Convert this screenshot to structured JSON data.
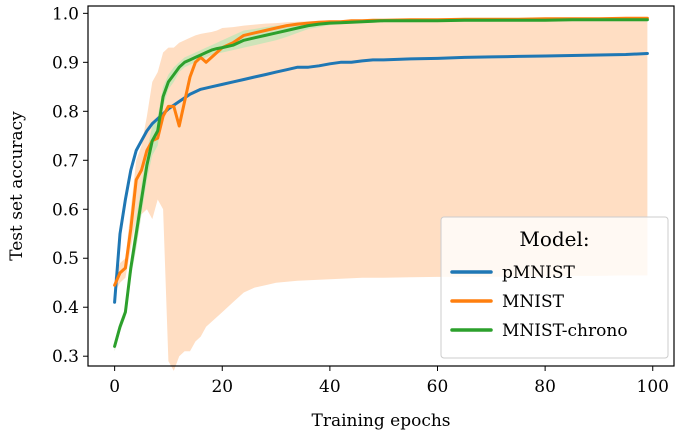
{
  "chart_data": {
    "type": "line",
    "title": "",
    "xlabel": "Training epochs",
    "ylabel": "Test set accuracy",
    "xlim": [
      -4.95,
      103.95
    ],
    "ylim": [
      0.28,
      1.015
    ],
    "xticks": [
      0,
      20,
      40,
      60,
      80,
      100
    ],
    "yticks": [
      0.3,
      0.4,
      0.5,
      0.6,
      0.7,
      0.8,
      0.9,
      1.0
    ],
    "grid": false,
    "legend": {
      "title": "Model:",
      "placement": "lower-right"
    },
    "series": [
      {
        "name": "pMNIST",
        "color": "#1f77b4",
        "x": [
          0,
          1,
          2,
          3,
          4,
          5,
          6,
          7,
          8,
          9,
          10,
          12,
          14,
          16,
          18,
          20,
          22,
          24,
          26,
          28,
          30,
          32,
          34,
          36,
          38,
          40,
          42,
          44,
          46,
          48,
          50,
          55,
          60,
          65,
          70,
          75,
          80,
          85,
          90,
          95,
          99
        ],
        "values": [
          0.41,
          0.55,
          0.62,
          0.68,
          0.72,
          0.74,
          0.76,
          0.775,
          0.785,
          0.795,
          0.805,
          0.82,
          0.835,
          0.845,
          0.85,
          0.855,
          0.86,
          0.865,
          0.87,
          0.875,
          0.88,
          0.885,
          0.89,
          0.89,
          0.893,
          0.897,
          0.9,
          0.9,
          0.903,
          0.905,
          0.905,
          0.907,
          0.908,
          0.91,
          0.911,
          0.912,
          0.913,
          0.914,
          0.915,
          0.916,
          0.918
        ]
      },
      {
        "name": "MNIST",
        "color": "#ff7f0e",
        "band_color": "#ffd8b8",
        "x": [
          0,
          1,
          2,
          3,
          4,
          5,
          6,
          7,
          8,
          9,
          10,
          11,
          12,
          13,
          14,
          15,
          16,
          17,
          18,
          19,
          20,
          22,
          24,
          26,
          28,
          30,
          32,
          34,
          36,
          38,
          40,
          42,
          44,
          46,
          48,
          50,
          55,
          60,
          65,
          70,
          75,
          80,
          85,
          90,
          95,
          99
        ],
        "values": [
          0.445,
          0.47,
          0.48,
          0.56,
          0.66,
          0.68,
          0.72,
          0.74,
          0.745,
          0.79,
          0.81,
          0.81,
          0.77,
          0.82,
          0.87,
          0.9,
          0.91,
          0.9,
          0.91,
          0.92,
          0.93,
          0.94,
          0.955,
          0.96,
          0.965,
          0.97,
          0.975,
          0.978,
          0.98,
          0.982,
          0.983,
          0.983,
          0.985,
          0.985,
          0.986,
          0.986,
          0.987,
          0.987,
          0.988,
          0.988,
          0.988,
          0.989,
          0.989,
          0.989,
          0.99,
          0.99
        ],
        "band_upper": [
          0.46,
          0.49,
          0.5,
          0.6,
          0.7,
          0.73,
          0.79,
          0.86,
          0.88,
          0.92,
          0.93,
          0.93,
          0.94,
          0.945,
          0.95,
          0.955,
          0.958,
          0.96,
          0.962,
          0.965,
          0.97,
          0.972,
          0.975,
          0.977,
          0.979,
          0.98,
          0.982,
          0.983,
          0.984,
          0.985,
          0.986,
          0.986,
          0.987,
          0.987,
          0.987,
          0.988,
          0.988,
          0.989,
          0.989,
          0.989,
          0.99,
          0.99,
          0.99,
          0.99,
          0.991,
          0.991
        ],
        "band_lower": [
          0.43,
          0.45,
          0.46,
          0.52,
          0.58,
          0.59,
          0.6,
          0.58,
          0.62,
          0.6,
          0.29,
          0.27,
          0.3,
          0.31,
          0.31,
          0.33,
          0.34,
          0.36,
          0.37,
          0.38,
          0.39,
          0.41,
          0.43,
          0.44,
          0.445,
          0.45,
          0.452,
          0.454,
          0.455,
          0.456,
          0.457,
          0.458,
          0.459,
          0.46,
          0.46,
          0.46,
          0.461,
          0.462,
          0.462,
          0.462,
          0.463,
          0.463,
          0.464,
          0.464,
          0.465,
          0.465
        ]
      },
      {
        "name": "MNIST-chrono",
        "color": "#2ca02c",
        "band_color": "#c6e5b7",
        "x": [
          0,
          1,
          2,
          3,
          4,
          5,
          6,
          7,
          8,
          9,
          10,
          11,
          12,
          13,
          14,
          15,
          16,
          17,
          18,
          19,
          20,
          22,
          24,
          26,
          28,
          30,
          32,
          34,
          36,
          38,
          40,
          42,
          44,
          46,
          48,
          50,
          55,
          60,
          65,
          70,
          75,
          80,
          85,
          90,
          95,
          99
        ],
        "values": [
          0.32,
          0.36,
          0.39,
          0.48,
          0.55,
          0.62,
          0.69,
          0.74,
          0.76,
          0.83,
          0.86,
          0.875,
          0.89,
          0.9,
          0.905,
          0.91,
          0.915,
          0.92,
          0.925,
          0.928,
          0.93,
          0.935,
          0.945,
          0.95,
          0.955,
          0.96,
          0.965,
          0.97,
          0.975,
          0.978,
          0.98,
          0.981,
          0.982,
          0.983,
          0.984,
          0.985,
          0.985,
          0.985,
          0.986,
          0.986,
          0.986,
          0.986,
          0.987,
          0.987,
          0.987,
          0.987
        ],
        "band_upper": [
          0.33,
          0.37,
          0.4,
          0.5,
          0.58,
          0.65,
          0.72,
          0.77,
          0.79,
          0.85,
          0.875,
          0.89,
          0.9,
          0.91,
          0.915,
          0.92,
          0.925,
          0.93,
          0.935,
          0.94,
          0.945,
          0.955,
          0.965,
          0.968,
          0.972,
          0.975,
          0.977,
          0.978,
          0.98,
          0.982,
          0.984,
          0.985,
          0.986,
          0.987,
          0.987,
          0.988,
          0.988,
          0.989,
          0.989,
          0.989,
          0.99,
          0.99,
          0.99,
          0.99,
          0.99,
          0.99
        ],
        "band_lower": [
          0.31,
          0.35,
          0.38,
          0.46,
          0.52,
          0.59,
          0.66,
          0.71,
          0.73,
          0.81,
          0.845,
          0.86,
          0.88,
          0.89,
          0.895,
          0.9,
          0.905,
          0.91,
          0.915,
          0.918,
          0.92,
          0.925,
          0.93,
          0.935,
          0.94,
          0.945,
          0.952,
          0.96,
          0.968,
          0.972,
          0.976,
          0.978,
          0.979,
          0.98,
          0.981,
          0.982,
          0.982,
          0.983,
          0.983,
          0.983,
          0.984,
          0.984,
          0.984,
          0.984,
          0.984,
          0.984
        ]
      }
    ]
  }
}
